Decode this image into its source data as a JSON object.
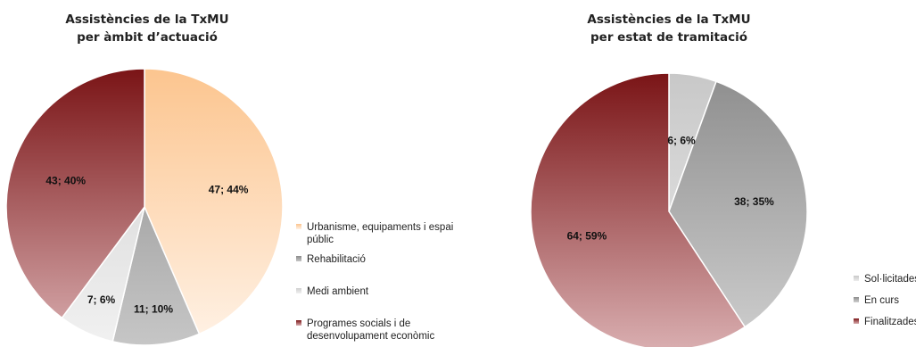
{
  "chart_data": [
    {
      "type": "pie",
      "title": [
        "Assistències de la TxMU",
        "per àmbit d’actuació"
      ],
      "slices": [
        {
          "name": "Urbanisme, equipaments i espai públic",
          "value": 47,
          "percent": "44%",
          "label": "47; 44%",
          "color_dark": "#fcc58f",
          "color_light": "#fff2e6"
        },
        {
          "name": "Rehabilitació",
          "value": 11,
          "percent": "10%",
          "label": "11; 10%",
          "color_dark": "#8c8c8c",
          "color_light": "#c6c6c6"
        },
        {
          "name": "Medi ambient",
          "value": 7,
          "percent": "6%",
          "label": "7; 6%",
          "color_dark": "#cfcfcf",
          "color_light": "#f1f1f1"
        },
        {
          "name": "Programes socials i de desenvolupament econòmic",
          "value": 43,
          "percent": "40%",
          "label": "43; 40%",
          "color_dark": "#7a1416",
          "color_light": "#d9aeb0"
        }
      ],
      "legend_labels": [
        [
          "Urbanisme, equipaments i espai",
          "públic"
        ],
        [
          "Rehabilitació"
        ],
        [
          "Medi ambient"
        ],
        [
          "Programes socials i de",
          "desenvolupament econòmic"
        ]
      ],
      "legend_position": "right"
    },
    {
      "type": "pie",
      "title": [
        "Assistències de la TxMU",
        "per estat de tramitació"
      ],
      "slices": [
        {
          "name": "Sol·licitades",
          "value": 6,
          "percent": "6%",
          "label": "6; 6%",
          "color_dark": "#c8c8c8",
          "color_light": "#ececec"
        },
        {
          "name": "En curs",
          "value": 38,
          "percent": "35%",
          "label": "38; 35%",
          "color_dark": "#8e8e8e",
          "color_light": "#cfcfcf"
        },
        {
          "name": "Finalitzades",
          "value": 64,
          "percent": "59%",
          "label": "64; 59%",
          "color_dark": "#7a1416",
          "color_light": "#d9aeb0"
        }
      ],
      "legend_labels": [
        [
          "Sol·licitades"
        ],
        [
          "En curs"
        ],
        [
          "Finalitzades"
        ]
      ],
      "legend_position": "right"
    }
  ]
}
